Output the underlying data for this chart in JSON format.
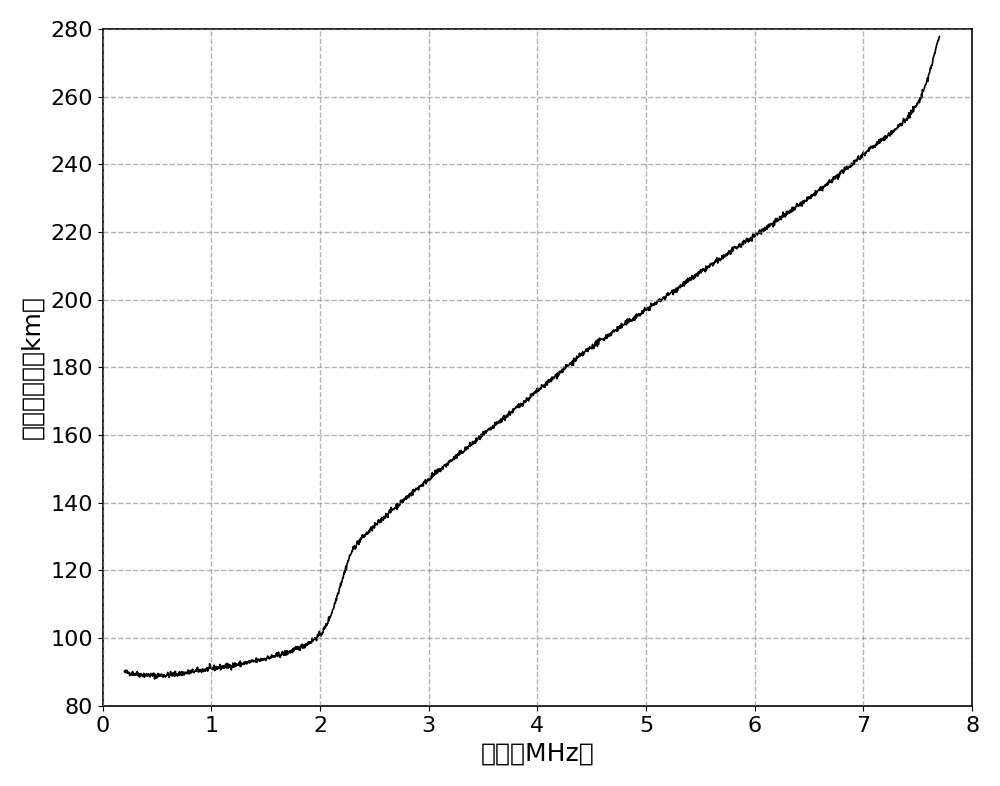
{
  "xlabel": "频率（MHz）",
  "ylabel": "电离层高度（km）",
  "xlim": [
    0,
    8
  ],
  "ylim": [
    80,
    280
  ],
  "xticks": [
    0,
    1,
    2,
    3,
    4,
    5,
    6,
    7,
    8
  ],
  "yticks": [
    80,
    100,
    120,
    140,
    160,
    180,
    200,
    220,
    240,
    260,
    280
  ],
  "grid_color": "#808080",
  "grid_linestyle": "--",
  "grid_alpha": 0.6,
  "line_color": "#000000",
  "line_width": 1.2,
  "background_color": "#ffffff",
  "xlabel_fontsize": 18,
  "ylabel_fontsize": 18,
  "tick_fontsize": 16,
  "control_x": [
    0.2,
    0.5,
    1.0,
    1.5,
    2.0,
    2.1,
    2.2,
    2.3,
    2.5,
    3.0,
    3.5,
    4.0,
    4.5,
    5.0,
    5.5,
    6.0,
    6.5,
    7.0,
    7.5,
    7.7
  ],
  "control_y": [
    90,
    89,
    91,
    94,
    101,
    107,
    117,
    126,
    133,
    147,
    160,
    173,
    186,
    197,
    208,
    219,
    230,
    243,
    258,
    278
  ]
}
